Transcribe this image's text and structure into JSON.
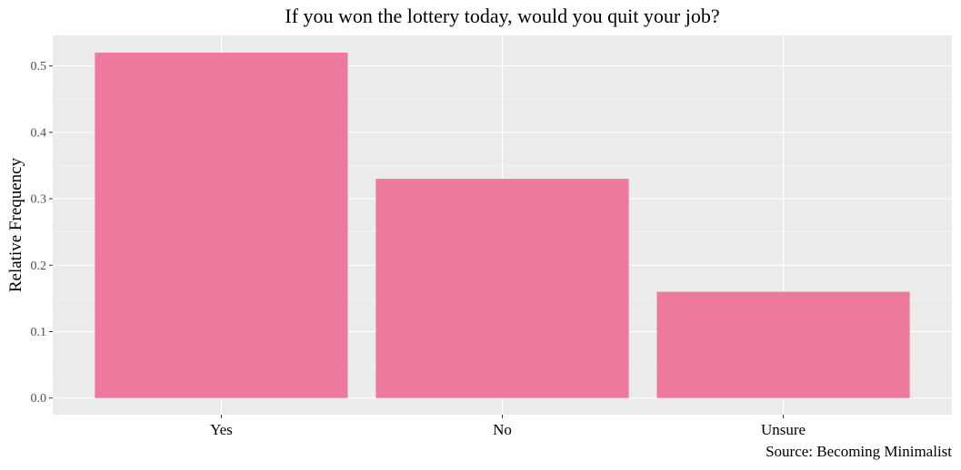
{
  "chart_data": {
    "type": "bar",
    "title": "If you won the lottery today, would you quit your job?",
    "xlabel": "",
    "ylabel": "Relative Frequency",
    "caption": "Source: Becoming Minimalist",
    "categories": [
      "Yes",
      "No",
      "Unsure"
    ],
    "values": [
      0.52,
      0.33,
      0.16
    ],
    "ylim": [
      -0.025,
      0.546
    ],
    "yticks": [
      0.0,
      0.1,
      0.2,
      0.3,
      0.4,
      0.5
    ],
    "ytick_labels": [
      "0.0",
      "0.1",
      "0.2",
      "0.3",
      "0.4",
      "0.5"
    ],
    "grid": true,
    "legend": "none",
    "colors": {
      "bar": "#ED799D",
      "panel_background": "#EBEBEB",
      "grid_major": "#FFFFFF",
      "grid_minor": "#F5F5F5",
      "tick_text": "#4D4D4D",
      "text": "#000000"
    }
  }
}
